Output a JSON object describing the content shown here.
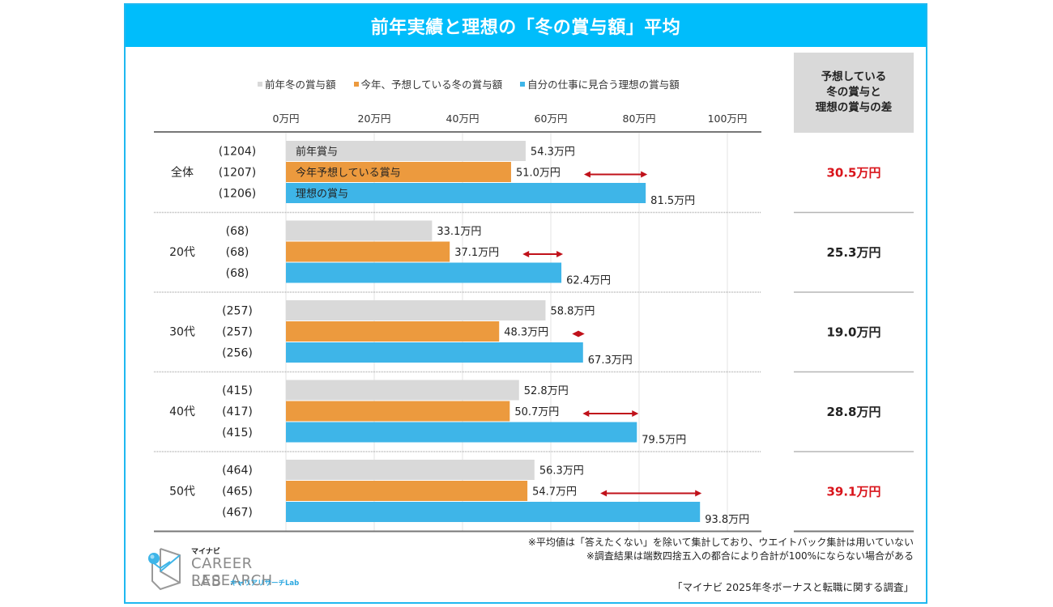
{
  "title": "前年実績と理想の「冬の賞与額」平均",
  "legend": [
    {
      "label": "前年冬の賞与額",
      "color": "#d9d9d9"
    },
    {
      "label": "今年、予想している冬の賞与額",
      "color": "#ec9a3e"
    },
    {
      "label": "自分の仕事に見合う理想の賞与額",
      "color": "#3eb5e8"
    }
  ],
  "diff_header": "予想している\n冬の賞与と\n理想の賞与の差",
  "notes": [
    "※平均値は「答えたくない」を除いて集計しており、ウエイトバック集計は用いていない",
    "※調査結果は端数四捨五入の都合により合計が100%にならない場合がある"
  ],
  "source": "「マイナビ 2025年冬ボーナスと転職に関する調査」",
  "logo": {
    "brand": "マイナビ",
    "line1": "CAREER RESEARCH",
    "line2": "LAB",
    "sub": "キャリアリサーチLab"
  },
  "chart_data": {
    "type": "bar",
    "orientation": "horizontal",
    "title": "前年実績と理想の「冬の賞与額」平均",
    "unit": "万円",
    "xlim": [
      0,
      100
    ],
    "xticks": [
      0,
      20,
      40,
      60,
      80,
      100
    ],
    "xtick_labels": [
      "0万円",
      "20万円",
      "40万円",
      "60万円",
      "80万円",
      "100万円"
    ],
    "grid": true,
    "legend_position": "top",
    "inbar_labels": [
      "前年賞与",
      "今年予想している賞与",
      "理想の賞与"
    ],
    "categories": [
      "全体",
      "20代",
      "30代",
      "40代",
      "50代"
    ],
    "sample_sizes": [
      [
        "(1204)",
        "(1207)",
        "(1206)"
      ],
      [
        "(68)",
        "(68)",
        "(68)"
      ],
      [
        "(257)",
        "(257)",
        "(256)"
      ],
      [
        "(415)",
        "(417)",
        "(415)"
      ],
      [
        "(464)",
        "(465)",
        "(467)"
      ]
    ],
    "series": [
      {
        "name": "前年冬の賞与額",
        "values": [
          54.3,
          33.1,
          58.8,
          52.8,
          56.3
        ],
        "labels": [
          "54.3万円",
          "33.1万円",
          "58.8万円",
          "52.8万円",
          "56.3万円"
        ]
      },
      {
        "name": "今年、予想している冬の賞与額",
        "values": [
          51.0,
          37.1,
          48.3,
          50.7,
          54.7
        ],
        "labels": [
          "51.0万円",
          "37.1万円",
          "48.3万円",
          "50.7万円",
          "54.7万円"
        ]
      },
      {
        "name": "自分の仕事に見合う理想の賞与額",
        "values": [
          81.5,
          62.4,
          67.3,
          79.5,
          93.8
        ],
        "labels": [
          "81.5万円",
          "62.4万円",
          "67.3万円",
          "79.5万円",
          "93.8万円"
        ]
      }
    ],
    "differences": [
      {
        "label": "30.5万円",
        "value": 30.5,
        "color": "#d9141b"
      },
      {
        "label": "25.3万円",
        "value": 25.3,
        "color": "#222222"
      },
      {
        "label": "19.0万円",
        "value": 19.0,
        "color": "#222222"
      },
      {
        "label": "28.8万円",
        "value": 28.8,
        "color": "#222222"
      },
      {
        "label": "39.1万円",
        "value": 39.1,
        "color": "#d9141b"
      }
    ],
    "arrow_color": "#c0111a"
  }
}
